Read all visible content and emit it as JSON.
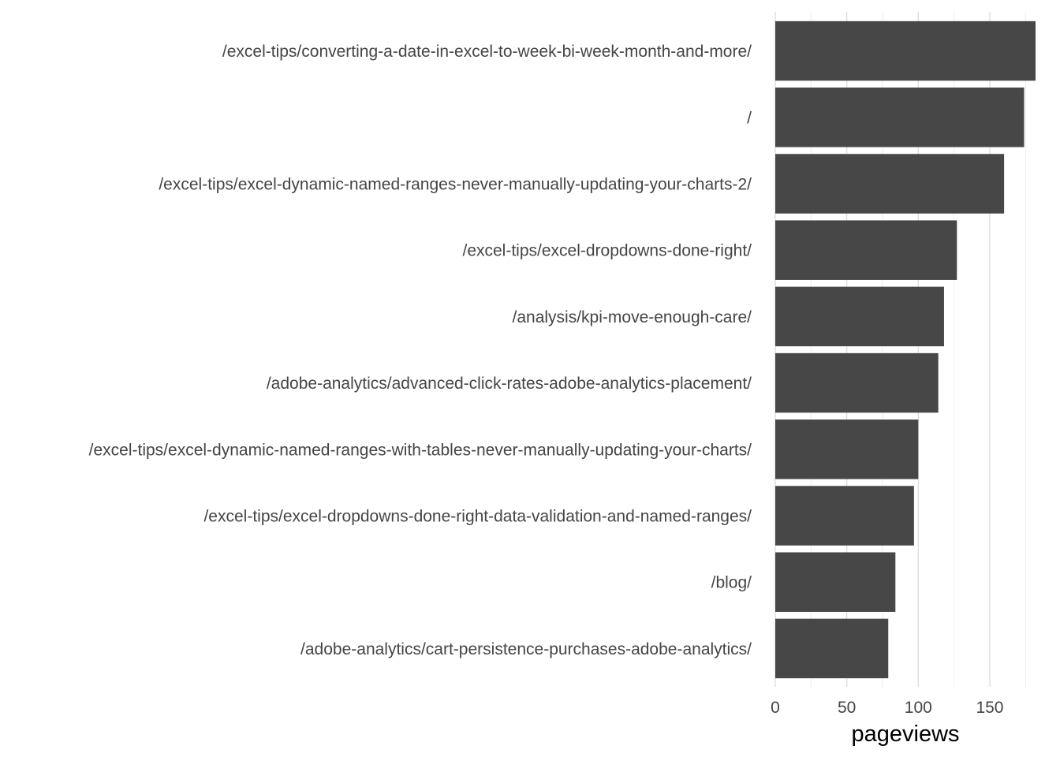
{
  "chart_data": {
    "type": "bar",
    "orientation": "horizontal",
    "categories": [
      "/excel-tips/converting-a-date-in-excel-to-week-bi-week-month-and-more/",
      "/",
      "/excel-tips/excel-dynamic-named-ranges-never-manually-updating-your-charts-2/",
      "/excel-tips/excel-dropdowns-done-right/",
      "/analysis/kpi-move-enough-care/",
      "/adobe-analytics/advanced-click-rates-adobe-analytics-placement/",
      "/excel-tips/excel-dynamic-named-ranges-with-tables-never-manually-updating-your-charts/",
      "/excel-tips/excel-dropdowns-done-right-data-validation-and-named-ranges/",
      "/blog/",
      "/adobe-analytics/cart-persistence-purchases-adobe-analytics/"
    ],
    "values": [
      182,
      174,
      160,
      127,
      118,
      114,
      100,
      97,
      84,
      79
    ],
    "xlabel": "pageviews",
    "ylabel": "",
    "title": "",
    "xlim": [
      0,
      182
    ],
    "xticks": [
      0,
      50,
      100,
      150
    ],
    "xtick_labels": [
      "0",
      "50",
      "100",
      "150"
    ],
    "grid": true,
    "colors": {
      "bar": "#474747",
      "grid_major": "#dcdcdc",
      "grid_minor": "#ececec",
      "text": "#454545"
    }
  }
}
